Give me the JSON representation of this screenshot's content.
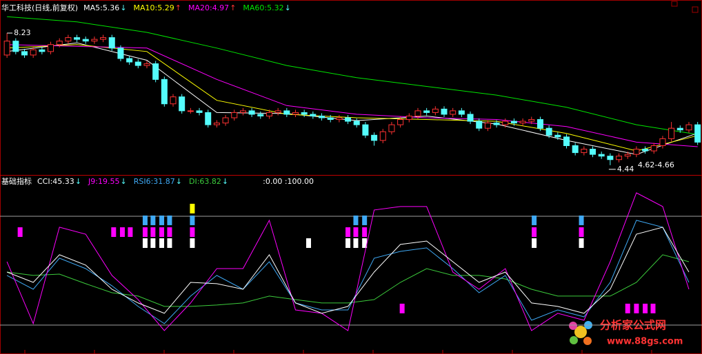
{
  "chart_data": [
    {
      "type": "candlestick",
      "title": "华工科技(日线,前复权)",
      "xlim": [
        -0.8,
        79.5
      ],
      "ylim": [
        4.18,
        9.08
      ],
      "up_color": "#ff3232",
      "down_color": "#54fcfc",
      "open": [
        7.6,
        8.0,
        7.7,
        7.6,
        7.75,
        7.7,
        7.9,
        8.0,
        8.1,
        8.05,
        8.0,
        8.05,
        8.1,
        7.8,
        7.5,
        7.4,
        7.3,
        7.35,
        6.9,
        6.2,
        6.4,
        6.0,
        6.0,
        5.95,
        5.6,
        5.65,
        5.8,
        5.95,
        6.0,
        5.9,
        5.85,
        5.95,
        6.0,
        5.9,
        5.95,
        5.9,
        5.85,
        5.8,
        5.75,
        5.8,
        5.7,
        5.6,
        5.3,
        5.15,
        5.4,
        5.6,
        5.75,
        5.85,
        6.0,
        5.95,
        6.05,
        5.9,
        6.0,
        5.9,
        5.7,
        5.5,
        5.65,
        5.6,
        5.7,
        5.65,
        5.7,
        5.75,
        5.5,
        5.3,
        5.25,
        5.0,
        4.8,
        4.9,
        4.75,
        4.7,
        4.6,
        4.7,
        4.75,
        4.9,
        4.85,
        5.0,
        5.2,
        5.5,
        5.45,
        5.6
      ],
      "high": [
        8.23,
        8.08,
        7.78,
        7.83,
        7.83,
        7.98,
        8.08,
        8.18,
        8.18,
        8.13,
        8.13,
        8.18,
        8.18,
        7.88,
        7.58,
        7.48,
        7.43,
        7.43,
        6.98,
        6.48,
        6.48,
        6.08,
        6.08,
        6.03,
        5.73,
        5.88,
        6.03,
        6.08,
        6.08,
        5.98,
        6.03,
        6.08,
        6.08,
        6.03,
        6.03,
        5.98,
        5.93,
        5.88,
        5.88,
        5.88,
        5.78,
        5.68,
        5.38,
        5.48,
        5.68,
        5.83,
        5.93,
        6.08,
        6.08,
        6.13,
        6.13,
        6.08,
        6.08,
        5.98,
        5.78,
        5.73,
        5.73,
        5.78,
        5.78,
        5.78,
        5.83,
        5.83,
        5.58,
        5.38,
        5.33,
        5.08,
        4.98,
        4.98,
        4.83,
        4.78,
        4.78,
        4.83,
        4.98,
        4.98,
        5.08,
        5.28,
        5.68,
        5.58,
        5.68,
        5.68
      ],
      "low": [
        7.52,
        7.62,
        7.52,
        7.52,
        7.62,
        7.62,
        7.82,
        7.92,
        7.97,
        7.92,
        7.92,
        7.97,
        7.72,
        7.42,
        7.32,
        7.22,
        7.22,
        6.82,
        6.12,
        6.12,
        5.92,
        5.92,
        5.87,
        5.52,
        5.52,
        5.57,
        5.72,
        5.87,
        5.82,
        5.77,
        5.77,
        5.87,
        5.82,
        5.82,
        5.82,
        5.77,
        5.72,
        5.67,
        5.67,
        5.62,
        5.52,
        5.22,
        5.0,
        5.07,
        5.32,
        5.52,
        5.67,
        5.77,
        5.87,
        5.87,
        5.82,
        5.82,
        5.82,
        5.62,
        5.42,
        5.42,
        5.52,
        5.52,
        5.57,
        5.57,
        5.62,
        5.42,
        5.22,
        5.17,
        4.92,
        4.72,
        4.72,
        4.67,
        4.62,
        4.44,
        4.52,
        4.62,
        4.67,
        4.77,
        4.77,
        4.92,
        5.12,
        5.37,
        5.37,
        5.02
      ],
      "close": [
        8.0,
        7.7,
        7.6,
        7.75,
        7.7,
        7.9,
        8.0,
        8.1,
        8.05,
        8.0,
        8.05,
        8.1,
        7.8,
        7.5,
        7.4,
        7.3,
        7.35,
        6.9,
        6.2,
        6.4,
        6.0,
        6.0,
        5.95,
        5.6,
        5.65,
        5.8,
        5.95,
        6.0,
        5.9,
        5.85,
        5.95,
        6.0,
        5.9,
        5.95,
        5.9,
        5.85,
        5.8,
        5.75,
        5.8,
        5.7,
        5.6,
        5.3,
        5.15,
        5.4,
        5.6,
        5.75,
        5.85,
        6.0,
        5.95,
        6.05,
        5.9,
        6.0,
        5.9,
        5.7,
        5.5,
        5.65,
        5.6,
        5.7,
        5.65,
        5.7,
        5.75,
        5.5,
        5.3,
        5.25,
        5.0,
        4.8,
        4.9,
        4.75,
        4.7,
        4.6,
        4.7,
        4.75,
        4.9,
        4.85,
        5.0,
        5.2,
        5.5,
        5.45,
        5.6,
        5.1
      ],
      "high_label": "8.23",
      "low_label": "4.44",
      "range_label": "4.62-4.66",
      "series": [
        {
          "name": "MA5:5.36",
          "arrow": "↓",
          "arrow_color": "#54fcfc",
          "color": "#ffffff",
          "x": [
            0,
            8,
            16,
            24,
            32,
            40,
            48,
            56,
            64,
            72,
            79
          ],
          "values": [
            7.7,
            7.95,
            7.45,
            5.95,
            5.92,
            5.72,
            5.85,
            5.62,
            5.15,
            4.75,
            5.36
          ]
        },
        {
          "name": "MA10:5.29",
          "arrow": "↑",
          "arrow_color": "#ff3232",
          "color": "#ffff00",
          "x": [
            0,
            8,
            16,
            24,
            32,
            40,
            48,
            56,
            64,
            72,
            79
          ],
          "values": [
            7.8,
            7.9,
            7.7,
            6.3,
            5.9,
            5.8,
            5.75,
            5.7,
            5.35,
            4.85,
            5.29
          ]
        },
        {
          "name": "MA20:4.97",
          "arrow": "↑",
          "arrow_color": "#ff3232",
          "color": "#ff00ff",
          "x": [
            0,
            8,
            16,
            24,
            32,
            40,
            48,
            56,
            64,
            72,
            79
          ],
          "values": [
            7.9,
            7.85,
            7.8,
            6.9,
            6.15,
            5.9,
            5.8,
            5.75,
            5.55,
            5.1,
            4.97
          ]
        },
        {
          "name": "MA60:5.32",
          "arrow": "↓",
          "arrow_color": "#54fcfc",
          "color": "#00e600",
          "x": [
            0,
            8,
            16,
            24,
            32,
            40,
            48,
            56,
            64,
            72,
            79
          ],
          "values": [
            8.7,
            8.55,
            8.25,
            7.8,
            7.3,
            6.95,
            6.7,
            6.45,
            6.1,
            5.6,
            5.32
          ]
        }
      ]
    },
    {
      "type": "line",
      "title": "基础指标",
      "ref_label": ":0.00 :100.00",
      "xlim": [
        -0.8,
        79.5
      ],
      "ylim": [
        -26.6,
        135.4
      ],
      "hlines": [
        0,
        100
      ],
      "series": [
        {
          "name": "CCI:45.33",
          "arrow": "↓",
          "arrow_color": "#54fcfc",
          "color": "#ffffff",
          "x": [
            0,
            3,
            6,
            9,
            12,
            15,
            18,
            21,
            24,
            27,
            30,
            33,
            36,
            39,
            42,
            45,
            48,
            51,
            54,
            57,
            60,
            63,
            66,
            69,
            72,
            75,
            78
          ],
          "values": [
            48.7,
            39.2,
            64.6,
            55.1,
            32.9,
            20.3,
            10.8,
            39.2,
            38,
            32.9,
            64.6,
            20.3,
            10.8,
            17.1,
            48.7,
            74.1,
            77.2,
            58.2,
            39.2,
            48.7,
            20.3,
            17.1,
            10.8,
            32.9,
            83.5,
            89.9,
            48.7
          ]
        },
        {
          "name": "J9:19.55",
          "arrow": "↓",
          "arrow_color": "#54fcfc",
          "color": "#ff00ff",
          "x": [
            0,
            3,
            6,
            9,
            12,
            15,
            18,
            21,
            24,
            27,
            30,
            33,
            36,
            39,
            42,
            45,
            48,
            51,
            54,
            57,
            60,
            63,
            66,
            69,
            72,
            75,
            78
          ],
          "values": [
            58.2,
            1.3,
            89.9,
            83.5,
            45.6,
            23.4,
            -5.1,
            20.3,
            51.9,
            51.9,
            96.2,
            13.9,
            10.8,
            -5.1,
            105.7,
            108.9,
            108.9,
            48.7,
            32.9,
            51.9,
            -5.1,
            10.8,
            4.4,
            58.2,
            121.5,
            108.9,
            32.9
          ]
        },
        {
          "name": "RSI6:31.87",
          "arrow": "↓",
          "arrow_color": "#54fcfc",
          "color": "#3fa9f5",
          "x": [
            0,
            3,
            6,
            9,
            12,
            15,
            18,
            21,
            24,
            27,
            30,
            33,
            36,
            39,
            42,
            45,
            48,
            51,
            54,
            57,
            60,
            63,
            66,
            69,
            72,
            75,
            78
          ],
          "values": [
            45.6,
            32.9,
            61.4,
            51.9,
            36.1,
            17.1,
            1.3,
            26.6,
            45.6,
            32.9,
            58.2,
            20.3,
            13.9,
            13.9,
            61.4,
            67.7,
            70.9,
            51.9,
            29.7,
            45.6,
            4.4,
            13.9,
            7.6,
            39.2,
            96.2,
            89.9,
            39.2
          ]
        },
        {
          "name": "DI:63.82",
          "arrow": "↓",
          "arrow_color": "#54fcfc",
          "color": "#3ccc3c",
          "x": [
            0,
            3,
            6,
            9,
            12,
            15,
            18,
            21,
            24,
            27,
            30,
            33,
            36,
            39,
            42,
            45,
            48,
            51,
            54,
            57,
            60,
            63,
            66,
            69,
            72,
            75,
            78
          ],
          "values": [
            48.7,
            45.6,
            46.8,
            38,
            29.7,
            26.6,
            17.1,
            17.1,
            18.4,
            20.3,
            26.6,
            23.4,
            20.3,
            20.3,
            23.4,
            39.2,
            51.9,
            45.6,
            45.6,
            42.4,
            32.9,
            26.6,
            26.6,
            26.6,
            39.2,
            64.6,
            58.2
          ]
        }
      ],
      "signals": [
        {
          "color": "#ff00ff",
          "x": [
            1.5,
            12.2,
            13.2,
            14.1,
            15.8,
            16.7,
            17.7,
            18.6,
            21.2,
            39,
            39.9,
            40.9,
            60.3,
            65.7,
            45.2,
            71,
            72,
            73,
            73.9
          ],
          "y": [
            85.4,
            85.4,
            85.4,
            85.4,
            85.4,
            85.4,
            85.4,
            85.4,
            85.4,
            85.4,
            85.4,
            85.4,
            85.4,
            85.4,
            15.2,
            15.2,
            15.2,
            15.2,
            15.2
          ]
        },
        {
          "color": "#3fa9f5",
          "x": [
            15.8,
            16.7,
            17.7,
            18.6,
            21.2,
            39.9,
            40.9,
            60.3,
            65.7
          ],
          "y": [
            96.2,
            96.2,
            96.2,
            96.2,
            96.2,
            96.2,
            96.2,
            96.2,
            96.2
          ]
        },
        {
          "color": "#ffffff",
          "x": [
            15.8,
            16.7,
            17.7,
            18.6,
            21.2,
            34.5,
            39,
            39.9,
            40.9,
            60.3,
            65.7
          ],
          "y": [
            75.3,
            75.3,
            75.3,
            75.3,
            75.3,
            75.3,
            75.3,
            75.3,
            75.3,
            75.3,
            75.3
          ]
        },
        {
          "color": "#ffff00",
          "x": [
            21.2
          ],
          "y": [
            107
          ]
        }
      ]
    }
  ],
  "watermark": {
    "title": "分析家公式网",
    "url": "www.88gs.com"
  }
}
